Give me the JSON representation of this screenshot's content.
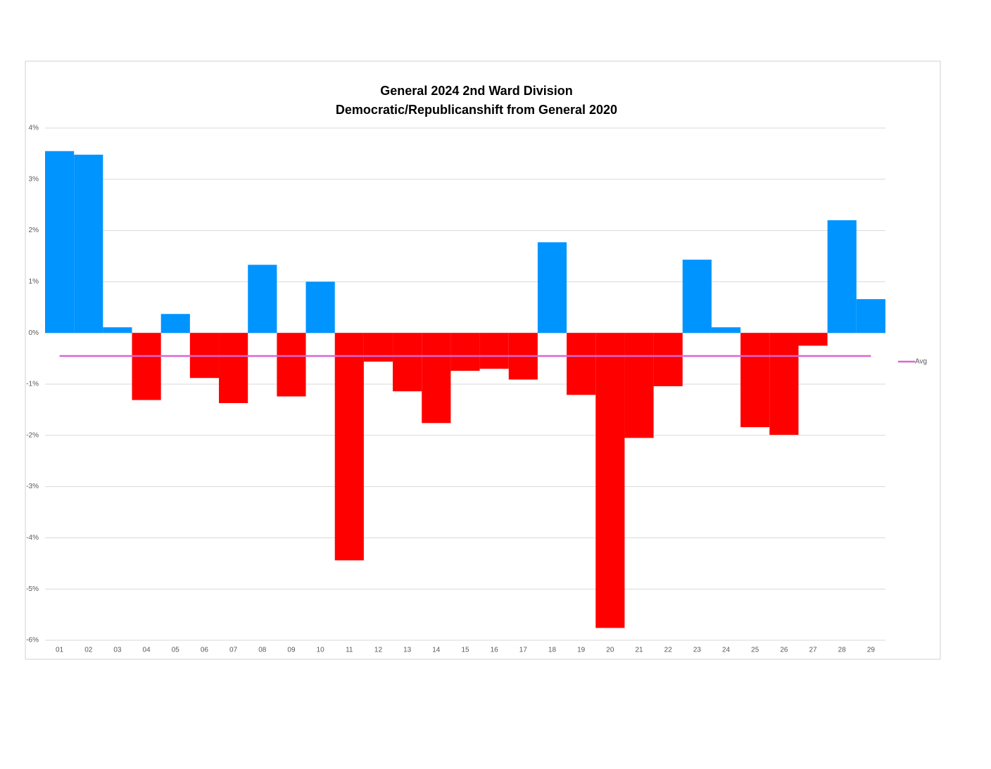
{
  "chart_data": {
    "type": "bar",
    "title": [
      "General 2024 2nd Ward Division",
      "Democratic/Republicanshift from General 2020"
    ],
    "categories": [
      "01",
      "02",
      "03",
      "04",
      "05",
      "06",
      "07",
      "08",
      "09",
      "10",
      "11",
      "12",
      "13",
      "14",
      "15",
      "16",
      "17",
      "18",
      "19",
      "20",
      "21",
      "22",
      "23",
      "24",
      "25",
      "26",
      "27",
      "28",
      "29"
    ],
    "values": [
      3.55,
      3.48,
      0.11,
      -1.31,
      0.37,
      -0.88,
      -1.37,
      1.33,
      -1.24,
      1.0,
      -4.44,
      -0.56,
      -1.14,
      -1.76,
      -0.74,
      -0.7,
      -0.91,
      1.77,
      -1.21,
      -5.76,
      -2.05,
      -1.04,
      1.43,
      0.11,
      -1.84,
      -1.99,
      -0.25,
      2.2,
      0.66
    ],
    "positive_color": "#0094ff",
    "negative_color": "#ff0000",
    "lines": [
      {
        "name": "Avg",
        "color": "#d966d6",
        "value": -0.45
      }
    ],
    "ylim": [
      -6,
      4
    ],
    "yticks": [
      {
        "value": 4,
        "label": "4%"
      },
      {
        "value": 3,
        "label": "3%"
      },
      {
        "value": 2,
        "label": "2%"
      },
      {
        "value": 1,
        "label": "1%"
      },
      {
        "value": 0,
        "label": "0%"
      },
      {
        "value": -1,
        "label": "-1%"
      },
      {
        "value": -2,
        "label": "-2%"
      },
      {
        "value": -3,
        "label": "-3%"
      },
      {
        "value": -4,
        "label": "-4%"
      },
      {
        "value": -5,
        "label": "-5%"
      },
      {
        "value": -6,
        "label": "-6%"
      }
    ],
    "grid": true,
    "legend": "right"
  }
}
